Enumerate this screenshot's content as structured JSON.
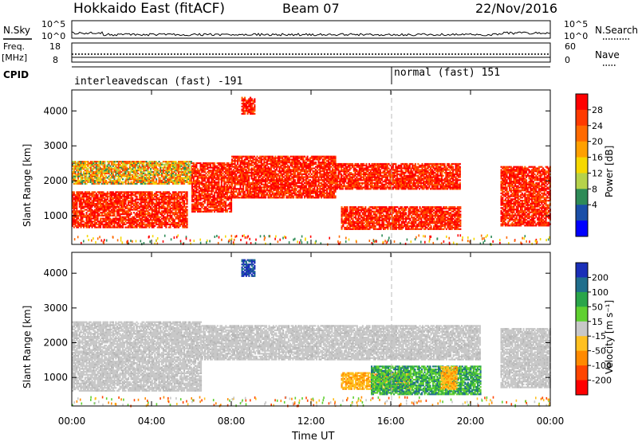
{
  "header": {
    "station": "Hokkaido East (fitACF)",
    "beam": "Beam 07",
    "date": "22/Nov/2016"
  },
  "left_labels": {
    "nsky": "N.Sky",
    "freq": "Freq.",
    "freq_unit": "[MHz]",
    "cpid": "CPID"
  },
  "right_labels": {
    "nsearch": "N.Search",
    "nave": "Nave"
  },
  "strip_ticks": {
    "noise_top_left": "10^5",
    "noise_bottom_left": "10^0",
    "noise_top_right": "10^5",
    "noise_bottom_right": "10^0",
    "freq_top": "18",
    "freq_bottom": "8",
    "nave_top": "60",
    "nave_bottom": "0"
  },
  "cpid_segments": [
    {
      "label": "interleavedscan (fast) -191",
      "start_hour": 0
    },
    {
      "label": "normal (fast) 151",
      "start_hour": 16
    }
  ],
  "power_colorbar": {
    "label": "Power [dB]",
    "ticks": [
      "28",
      "24",
      "20",
      "16",
      "12",
      "8",
      "4"
    ],
    "colors": [
      "#ff0000",
      "#ff3a00",
      "#ff6a00",
      "#ffa000",
      "#f6d800",
      "#b6d24a",
      "#2e8b57",
      "#1a4fa8",
      "#0000ff"
    ]
  },
  "velocity_colorbar": {
    "label": "Velocity [m s⁻¹]",
    "ticks": [
      "200",
      "100",
      "50",
      "15",
      "-15",
      "-50",
      "-100",
      "-200"
    ],
    "colors": [
      "#1a2fb8",
      "#206e8c",
      "#2aa54a",
      "#5fd030",
      "#c8c8c8",
      "#ffc020",
      "#ff8a00",
      "#ff4500",
      "#ff0000"
    ]
  },
  "chart_data": {
    "type": "heatmap",
    "xlabel": "Time UT",
    "x_ticks": [
      "00:00",
      "04:00",
      "08:00",
      "12:00",
      "16:00",
      "20:00",
      "00:00"
    ],
    "xlim_hours": [
      0,
      24
    ],
    "ylabel": "Slant Range [km]",
    "y_ticks": [
      "1000",
      "2000",
      "3000",
      "4000"
    ],
    "ylim_km": [
      180,
      4600
    ],
    "panels": [
      {
        "name": "Power",
        "unit": "dB",
        "range": [
          0,
          30
        ]
      },
      {
        "name": "Velocity",
        "unit": "m s⁻¹",
        "range": [
          -200,
          200
        ]
      }
    ],
    "power_regions": [
      {
        "t0": 0.0,
        "t1": 5.8,
        "r0": 650,
        "r1": 1700,
        "level": "high"
      },
      {
        "t0": 0.0,
        "t1": 6.0,
        "r0": 1900,
        "r1": 2550,
        "level": "medium"
      },
      {
        "t0": 6.0,
        "t1": 8.0,
        "r0": 1100,
        "r1": 2500,
        "level": "high"
      },
      {
        "t0": 8.0,
        "t1": 13.2,
        "r0": 1500,
        "r1": 2700,
        "level": "high"
      },
      {
        "t0": 8.5,
        "t1": 9.2,
        "r0": 3900,
        "r1": 4400,
        "level": "high"
      },
      {
        "t0": 13.2,
        "t1": 19.5,
        "r0": 1750,
        "r1": 2500,
        "level": "high"
      },
      {
        "t0": 13.5,
        "t1": 19.5,
        "r0": 600,
        "r1": 1250,
        "level": "high"
      },
      {
        "t0": 21.5,
        "t1": 24.0,
        "r0": 700,
        "r1": 2400,
        "level": "high"
      }
    ],
    "velocity_regions": [
      {
        "t0": 0.0,
        "t1": 6.5,
        "r0": 600,
        "r1": 2600,
        "class": "ground"
      },
      {
        "t0": 6.5,
        "t1": 20.5,
        "r0": 1500,
        "r1": 2500,
        "class": "ground"
      },
      {
        "t0": 8.5,
        "t1": 9.2,
        "r0": 3900,
        "r1": 4400,
        "class": "+200"
      },
      {
        "t0": 13.5,
        "t1": 17.0,
        "r0": 650,
        "r1": 1150,
        "class": "-50"
      },
      {
        "t0": 15.0,
        "t1": 20.5,
        "r0": 500,
        "r1": 1300,
        "class": "+15..+50"
      },
      {
        "t0": 18.5,
        "t1": 19.3,
        "r0": 650,
        "r1": 1300,
        "class": "-50"
      },
      {
        "t0": 21.5,
        "t1": 24.0,
        "r0": 700,
        "r1": 2400,
        "class": "ground"
      }
    ]
  }
}
